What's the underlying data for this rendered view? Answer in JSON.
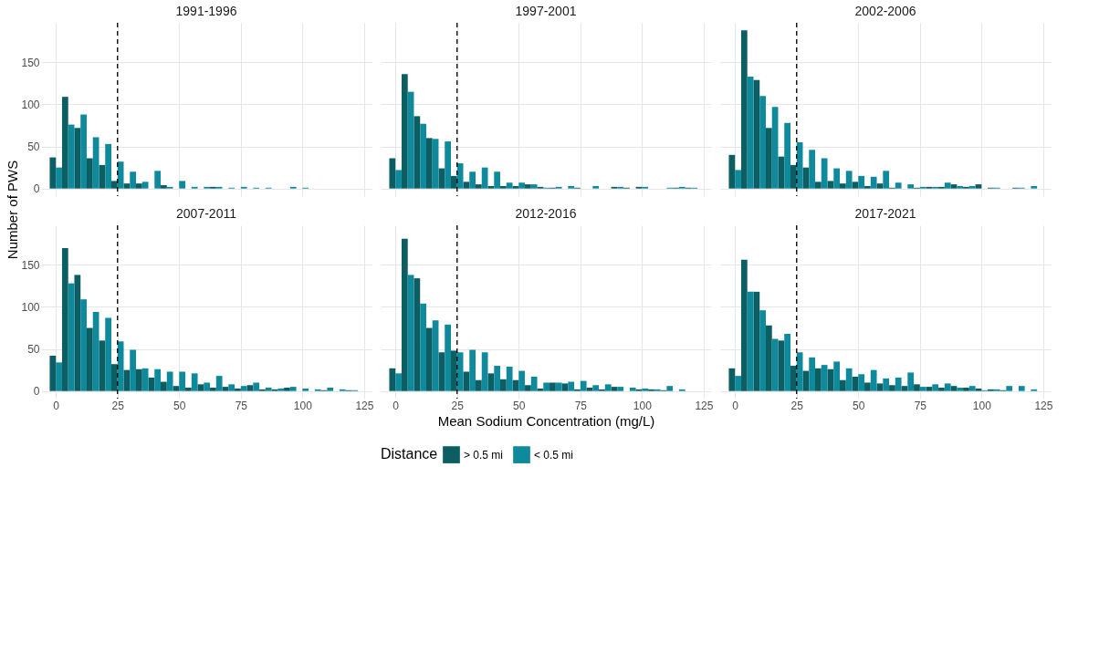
{
  "chart_data": [
    {
      "type": "histogram",
      "title": "1991-1996",
      "ylabel": "Number of PWS",
      "bins": [
        -2.5,
        2.5,
        7.5,
        12.5,
        17.5,
        22.5,
        27.5,
        32.5,
        37.5,
        42.5,
        47.5,
        52.5,
        57.5,
        62.5,
        67.5,
        72.5,
        77.5,
        82.5,
        87.5,
        92.5,
        97.5,
        102.5,
        107.5,
        112.5,
        117.5,
        122.5
      ],
      "series": [
        {
          "color": "#0d5e63",
          "values": [
            37,
            109,
            72,
            36,
            28,
            9,
            6,
            6,
            0,
            4,
            0,
            0,
            0,
            2,
            0,
            0,
            0,
            0,
            0,
            0,
            0,
            0,
            0,
            0,
            0
          ]
        },
        {
          "color": "#0f8a9d",
          "values": [
            25,
            76,
            88,
            61,
            53,
            32,
            20,
            8,
            21,
            2,
            9,
            2,
            2,
            2,
            1,
            2,
            1,
            1,
            0,
            2,
            1,
            0,
            0,
            0,
            0
          ]
        }
      ],
      "xlim": [
        -6,
        128
      ],
      "ylim": [
        -9,
        197
      ],
      "xticks": [
        0,
        25,
        50,
        75,
        100,
        125
      ],
      "yticks": [
        0,
        50,
        100,
        150
      ],
      "ref_lines": [
        {
          "axis": "x",
          "value": 25,
          "line_style": "dashed",
          "color": "#000000"
        }
      ],
      "grid": true,
      "tick_labels": "y"
    },
    {
      "type": "histogram",
      "title": "1997-2001",
      "bins": [
        -2.5,
        2.5,
        7.5,
        12.5,
        17.5,
        22.5,
        27.5,
        32.5,
        37.5,
        42.5,
        47.5,
        52.5,
        57.5,
        62.5,
        67.5,
        72.5,
        77.5,
        82.5,
        87.5,
        92.5,
        97.5,
        102.5,
        107.5,
        112.5,
        117.5,
        122.5
      ],
      "series": [
        {
          "color": "#0d5e63",
          "values": [
            36,
            136,
            86,
            60,
            24,
            15,
            8,
            5,
            3,
            3,
            3,
            5,
            2,
            1,
            0,
            1,
            0,
            0,
            2,
            1,
            2,
            0,
            0,
            1,
            1
          ]
        },
        {
          "color": "#0f8a9d",
          "values": [
            22,
            115,
            77,
            59,
            56,
            30,
            20,
            25,
            20,
            7,
            7,
            5,
            1,
            2,
            3,
            0,
            3,
            0,
            2,
            0,
            2,
            0,
            1,
            2,
            1
          ]
        }
      ],
      "xlim": [
        -6,
        128
      ],
      "ylim": [
        -9,
        197
      ],
      "xticks": [
        0,
        25,
        50,
        75,
        100,
        125
      ],
      "yticks": [
        0,
        50,
        100,
        150
      ],
      "ref_lines": [
        {
          "axis": "x",
          "value": 25,
          "line_style": "dashed",
          "color": "#000000"
        }
      ],
      "grid": true,
      "tick_labels": false
    },
    {
      "type": "histogram",
      "title": "2002-2006",
      "bins": [
        -2.5,
        2.5,
        7.5,
        12.5,
        17.5,
        22.5,
        27.5,
        32.5,
        37.5,
        42.5,
        47.5,
        52.5,
        57.5,
        62.5,
        67.5,
        72.5,
        77.5,
        82.5,
        87.5,
        92.5,
        97.5,
        102.5,
        107.5,
        112.5,
        117.5,
        122.5
      ],
      "series": [
        {
          "color": "#0d5e63",
          "values": [
            40,
            188,
            129,
            72,
            38,
            28,
            25,
            8,
            9,
            6,
            8,
            3,
            6,
            1,
            0,
            1,
            2,
            2,
            5,
            2,
            5,
            1,
            0,
            1,
            0
          ]
        },
        {
          "color": "#0f8a9d",
          "values": [
            22,
            133,
            110,
            97,
            78,
            55,
            46,
            36,
            24,
            21,
            15,
            14,
            21,
            7,
            5,
            2,
            2,
            7,
            3,
            3,
            0,
            1,
            0,
            1,
            3
          ]
        }
      ],
      "xlim": [
        -6,
        128
      ],
      "ylim": [
        -9,
        197
      ],
      "xticks": [
        0,
        25,
        50,
        75,
        100,
        125
      ],
      "yticks": [
        0,
        50,
        100,
        150
      ],
      "ref_lines": [
        {
          "axis": "x",
          "value": 25,
          "line_style": "dashed",
          "color": "#000000"
        }
      ],
      "grid": true,
      "tick_labels": false
    },
    {
      "type": "histogram",
      "title": "2007-2011",
      "bins": [
        -2.5,
        2.5,
        7.5,
        12.5,
        17.5,
        22.5,
        27.5,
        32.5,
        37.5,
        42.5,
        47.5,
        52.5,
        57.5,
        62.5,
        67.5,
        72.5,
        77.5,
        82.5,
        87.5,
        92.5,
        97.5,
        102.5,
        107.5,
        112.5,
        117.5,
        122.5
      ],
      "series": [
        {
          "color": "#0d5e63",
          "values": [
            42,
            170,
            138,
            75,
            60,
            32,
            25,
            26,
            16,
            11,
            6,
            4,
            8,
            4,
            5,
            3,
            7,
            2,
            2,
            4,
            0,
            0,
            1,
            0,
            1
          ]
        },
        {
          "color": "#0f8a9d",
          "values": [
            34,
            128,
            109,
            94,
            87,
            59,
            49,
            27,
            26,
            23,
            23,
            21,
            10,
            18,
            8,
            6,
            10,
            4,
            3,
            5,
            3,
            2,
            4,
            2,
            1
          ]
        }
      ],
      "xlim": [
        -6,
        128
      ],
      "ylim": [
        -9,
        197
      ],
      "xticks": [
        0,
        25,
        50,
        75,
        100,
        125
      ],
      "yticks": [
        0,
        50,
        100,
        150
      ],
      "ref_lines": [
        {
          "axis": "x",
          "value": 25,
          "line_style": "dashed",
          "color": "#000000"
        }
      ],
      "grid": true
    },
    {
      "type": "histogram",
      "title": "2012-2016",
      "xlabel": "Mean Sodium Concentration (mg/L)",
      "legend_title": "Distance",
      "legend": "bottom",
      "bins": [
        -2.5,
        2.5,
        7.5,
        12.5,
        17.5,
        22.5,
        27.5,
        32.5,
        37.5,
        42.5,
        47.5,
        52.5,
        57.5,
        62.5,
        67.5,
        72.5,
        77.5,
        82.5,
        87.5,
        92.5,
        97.5,
        102.5,
        107.5,
        112.5,
        117.5,
        122.5
      ],
      "series": [
        {
          "name": "> 0.5 mi",
          "color": "#0d5e63",
          "values": [
            27,
            181,
            134,
            75,
            46,
            48,
            23,
            13,
            21,
            14,
            13,
            7,
            3,
            10,
            9,
            2,
            4,
            2,
            5,
            0,
            2,
            2,
            1,
            0,
            0
          ]
        },
        {
          "name": "< 0.5 mi",
          "color": "#0f8a9d",
          "values": [
            21,
            138,
            104,
            84,
            79,
            46,
            49,
            46,
            30,
            29,
            24,
            17,
            10,
            10,
            11,
            12,
            7,
            8,
            5,
            4,
            3,
            2,
            6,
            2,
            0
          ]
        }
      ],
      "xlim": [
        -6,
        128
      ],
      "ylim": [
        -9,
        197
      ],
      "xticks": [
        0,
        25,
        50,
        75,
        100,
        125
      ],
      "yticks": [
        0,
        50,
        100,
        150
      ],
      "ref_lines": [
        {
          "axis": "x",
          "value": 25,
          "line_style": "dashed",
          "color": "#000000"
        }
      ],
      "grid": true,
      "tick_labels": "x"
    },
    {
      "type": "histogram",
      "title": "2017-2021",
      "bins": [
        -2.5,
        2.5,
        7.5,
        12.5,
        17.5,
        22.5,
        27.5,
        32.5,
        37.5,
        42.5,
        47.5,
        52.5,
        57.5,
        62.5,
        67.5,
        72.5,
        77.5,
        82.5,
        87.5,
        92.5,
        97.5,
        102.5,
        107.5,
        112.5,
        117.5,
        122.5
      ],
      "series": [
        {
          "color": "#0d5e63",
          "values": [
            27,
            156,
            118,
            78,
            60,
            30,
            24,
            27,
            26,
            13,
            17,
            10,
            9,
            7,
            6,
            8,
            5,
            4,
            6,
            4,
            3,
            2,
            1,
            0,
            0
          ]
        },
        {
          "color": "#0f8a9d",
          "values": [
            18,
            118,
            96,
            62,
            68,
            46,
            40,
            31,
            35,
            27,
            20,
            25,
            15,
            16,
            22,
            5,
            8,
            9,
            4,
            6,
            1,
            2,
            6,
            6,
            2
          ]
        }
      ],
      "xlim": [
        -6,
        128
      ],
      "ylim": [
        -9,
        197
      ],
      "xticks": [
        0,
        25,
        50,
        75,
        100,
        125
      ],
      "yticks": [
        0,
        50,
        100,
        150
      ],
      "ref_lines": [
        {
          "axis": "x",
          "value": 25,
          "line_style": "dashed",
          "color": "#000000"
        }
      ],
      "grid": true,
      "tick_labels": "x"
    }
  ]
}
